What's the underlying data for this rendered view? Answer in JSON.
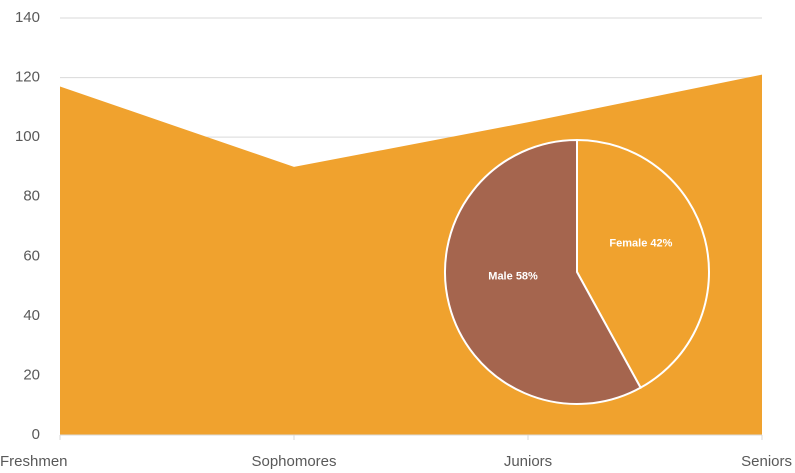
{
  "chart_data": [
    {
      "type": "area",
      "categories": [
        "Freshmen",
        "Sophomores",
        "Juniors",
        "Seniors"
      ],
      "values": [
        117,
        90,
        105,
        121
      ],
      "color": "#f0a22e",
      "ylim": [
        0,
        140
      ],
      "yticks": [
        0,
        20,
        40,
        60,
        80,
        100,
        120,
        140
      ],
      "grid": true
    },
    {
      "type": "pie",
      "categories": [
        "Female",
        "Male"
      ],
      "values": [
        42,
        58
      ],
      "value_labels": [
        "42%",
        "58%"
      ],
      "colors": [
        "#f0a22e",
        "#a5654e"
      ]
    }
  ]
}
